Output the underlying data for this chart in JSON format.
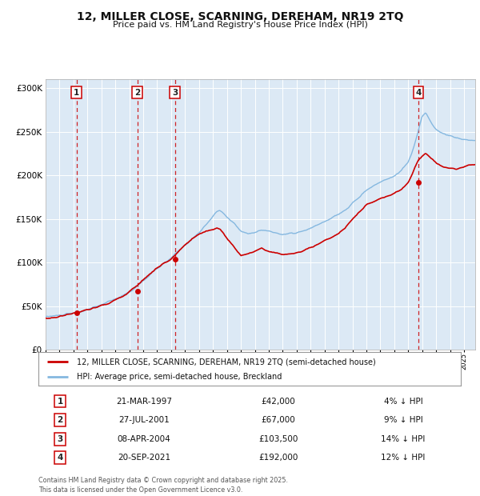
{
  "title": "12, MILLER CLOSE, SCARNING, DEREHAM, NR19 2TQ",
  "subtitle": "Price paid vs. HM Land Registry's House Price Index (HPI)",
  "background_color": "#ffffff",
  "plot_bg_color": "#dce9f5",
  "hpi_color": "#85b8e0",
  "price_color": "#cc0000",
  "grid_color": "#ffffff",
  "legend_label_price": "12, MILLER CLOSE, SCARNING, DEREHAM, NR19 2TQ (semi-detached house)",
  "legend_label_hpi": "HPI: Average price, semi-detached house, Breckland",
  "transactions": [
    {
      "label": "1",
      "date": "21-MAR-1997",
      "price": 42000,
      "pct": "4%",
      "x_year": 1997.22
    },
    {
      "label": "2",
      "date": "27-JUL-2001",
      "price": 67000,
      "pct": "9%",
      "x_year": 2001.57
    },
    {
      "label": "3",
      "date": "08-APR-2004",
      "price": 103500,
      "pct": "14%",
      "x_year": 2004.27
    },
    {
      "label": "4",
      "date": "20-SEP-2021",
      "price": 192000,
      "pct": "12%",
      "x_year": 2021.72
    }
  ],
  "table_rows": [
    {
      "label": "1",
      "date": "21-MAR-1997",
      "price": "£42,000",
      "pct": "4% ↓ HPI"
    },
    {
      "label": "2",
      "date": "27-JUL-2001",
      "price": "£67,000",
      "pct": "9% ↓ HPI"
    },
    {
      "label": "3",
      "date": "08-APR-2004",
      "price": "£103,500",
      "pct": "14% ↓ HPI"
    },
    {
      "label": "4",
      "date": "20-SEP-2021",
      "price": "£192,000",
      "pct": "12% ↓ HPI"
    }
  ],
  "footer": "Contains HM Land Registry data © Crown copyright and database right 2025.\nThis data is licensed under the Open Government Licence v3.0.",
  "ylim": [
    0,
    310000
  ],
  "yticks": [
    0,
    50000,
    100000,
    150000,
    200000,
    250000,
    300000
  ],
  "ytick_labels": [
    "£0",
    "£50K",
    "£100K",
    "£150K",
    "£200K",
    "£250K",
    "£300K"
  ],
  "xmin": 1995.0,
  "xmax": 2025.8
}
